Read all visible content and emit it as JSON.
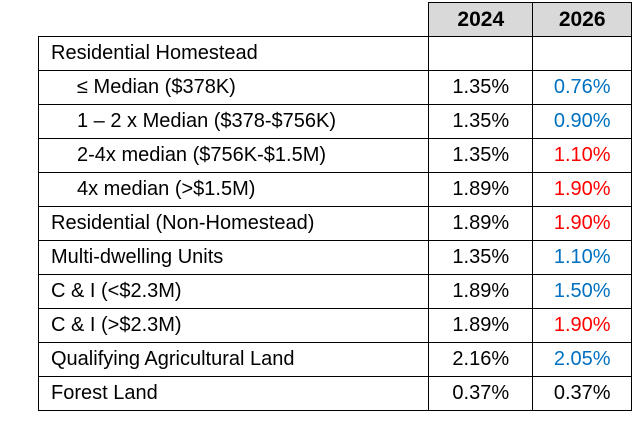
{
  "table": {
    "columns": [
      "2024",
      "2026"
    ],
    "rows": [
      {
        "label": "Residential Homestead",
        "children": [
          {
            "label": "≤ Median ($378K)",
            "values": [
              "1.35%",
              "0.76%"
            ],
            "colors": [
              "#000000",
              "#0070c0"
            ]
          },
          {
            "label": "1 – 2 x Median ($378-$756K)",
            "values": [
              "1.35%",
              "0.90%"
            ],
            "colors": [
              "#000000",
              "#0070c0"
            ]
          },
          {
            "label": "2-4x median ($756K-$1.5M)",
            "values": [
              "1.35%",
              "1.10%"
            ],
            "colors": [
              "#000000",
              "#ff0000"
            ]
          },
          {
            "label": "4x median (>$1.5M)",
            "values": [
              "1.89%",
              "1.90%"
            ],
            "colors": [
              "#000000",
              "#ff0000"
            ]
          }
        ]
      },
      {
        "label": "Residential (Non-Homestead)",
        "values": [
          "1.89%",
          "1.90%"
        ],
        "colors": [
          "#000000",
          "#ff0000"
        ]
      },
      {
        "label": "Multi-dwelling Units",
        "values": [
          "1.35%",
          "1.10%"
        ],
        "colors": [
          "#000000",
          "#0070c0"
        ]
      },
      {
        "label": "C & I (<$2.3M)",
        "values": [
          "1.89%",
          "1.50%"
        ],
        "colors": [
          "#000000",
          "#0070c0"
        ]
      },
      {
        "label": "C & I (>$2.3M)",
        "values": [
          "1.89%",
          "1.90%"
        ],
        "colors": [
          "#000000",
          "#ff0000"
        ]
      },
      {
        "label": "Qualifying Agricultural Land",
        "values": [
          "2.16%",
          "2.05%"
        ],
        "colors": [
          "#000000",
          "#0070c0"
        ]
      },
      {
        "label": "Forest Land",
        "values": [
          "0.37%",
          "0.37%"
        ],
        "colors": [
          "#000000",
          "#000000"
        ]
      }
    ]
  }
}
